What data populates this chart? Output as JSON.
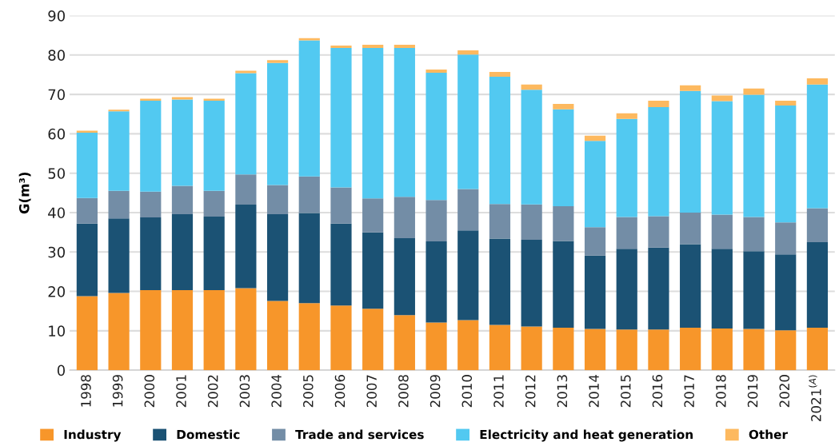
{
  "chart_data": {
    "type": "bar",
    "stacked": true,
    "ylabel": "G(m³)",
    "categories": [
      "1998",
      "1999",
      "2000",
      "2001",
      "2002",
      "2003",
      "2004",
      "2005",
      "2006",
      "2007",
      "2008",
      "2009",
      "2010",
      "2011",
      "2012",
      "2013",
      "2014",
      "2015",
      "2016",
      "2017",
      "2018",
      "2019",
      "2020",
      "2021$^{(A)}$"
    ],
    "series": [
      {
        "name": "Industry",
        "color": "#f7962a",
        "values": [
          18.8,
          19.6,
          20.3,
          20.3,
          20.3,
          20.8,
          17.6,
          17.0,
          16.4,
          15.6,
          14.0,
          12.1,
          12.7,
          11.5,
          11.1,
          10.8,
          10.5,
          10.3,
          10.3,
          10.8,
          10.6,
          10.5,
          10.1,
          10.8
        ]
      },
      {
        "name": "Domestic",
        "color": "#1b5274",
        "values": [
          18.4,
          18.9,
          18.5,
          19.3,
          18.7,
          21.2,
          22.0,
          22.9,
          20.8,
          19.4,
          19.5,
          20.6,
          22.8,
          21.9,
          22.0,
          22.0,
          18.6,
          20.5,
          20.8,
          21.2,
          20.2,
          19.7,
          19.3,
          21.7
        ]
      },
      {
        "name": "Trade and services",
        "color": "#738da6",
        "values": [
          6.5,
          7.0,
          6.5,
          7.2,
          6.5,
          7.7,
          7.4,
          9.3,
          9.2,
          8.6,
          10.5,
          10.5,
          10.5,
          8.8,
          9.0,
          8.8,
          7.2,
          8.1,
          8.0,
          8.0,
          8.7,
          8.7,
          8.1,
          8.6
        ]
      },
      {
        "name": "Electricity and heat generation",
        "color": "#52c9f1",
        "values": [
          16.6,
          20.2,
          23.1,
          21.9,
          22.9,
          25.7,
          31.0,
          34.5,
          35.4,
          38.2,
          37.8,
          32.3,
          34.1,
          32.3,
          29.1,
          24.6,
          21.9,
          24.9,
          27.7,
          30.9,
          28.8,
          31.0,
          29.7,
          31.4
        ]
      },
      {
        "name": "Other",
        "color": "#fdb95f",
        "values": [
          0.5,
          0.4,
          0.5,
          0.6,
          0.5,
          0.6,
          0.7,
          0.6,
          0.6,
          0.8,
          0.8,
          0.8,
          1.1,
          1.2,
          1.3,
          1.4,
          1.3,
          1.4,
          1.6,
          1.4,
          1.4,
          1.6,
          1.2,
          1.6
        ]
      }
    ],
    "ylim": [
      0,
      90
    ],
    "yticks": [
      0,
      10,
      20,
      30,
      40,
      50,
      60,
      70,
      80,
      90
    ],
    "grid": "y",
    "legend": "bottom"
  }
}
